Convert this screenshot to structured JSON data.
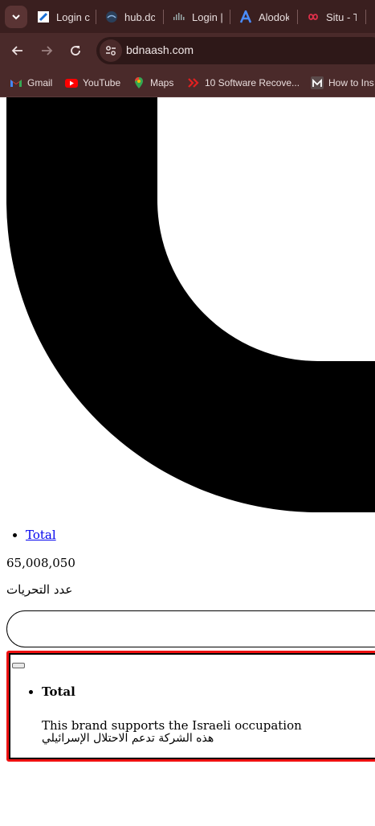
{
  "browser": {
    "tabs": [
      {
        "label": "Login c",
        "icon": "document-arrow-icon"
      },
      {
        "label": "hub.dc",
        "icon": "docker-icon"
      },
      {
        "label": "Login |",
        "icon": "cisco-icon"
      },
      {
        "label": "Alodok",
        "icon": "alodokter-icon"
      },
      {
        "label": "Situ - T",
        "icon": "infinity-icon"
      }
    ],
    "url": "bdnaash.com",
    "bookmarks": [
      {
        "label": "Gmail",
        "icon": "gmail-icon"
      },
      {
        "label": "YouTube",
        "icon": "youtube-icon"
      },
      {
        "label": "Maps",
        "icon": "maps-icon"
      },
      {
        "label": "10 Software Recove...",
        "icon": "chevrons-icon"
      },
      {
        "label": "How to Ins",
        "icon": "m-icon"
      }
    ]
  },
  "page": {
    "nav_item": "Total",
    "count": "65,008,050",
    "count_label": "عدد التحريات",
    "alert": {
      "item": "Total",
      "message_en": "This brand supports the Israeli occupation",
      "message_ar": "هذه الشركة تدعم الاحتلال الإسرائيلي"
    }
  }
}
